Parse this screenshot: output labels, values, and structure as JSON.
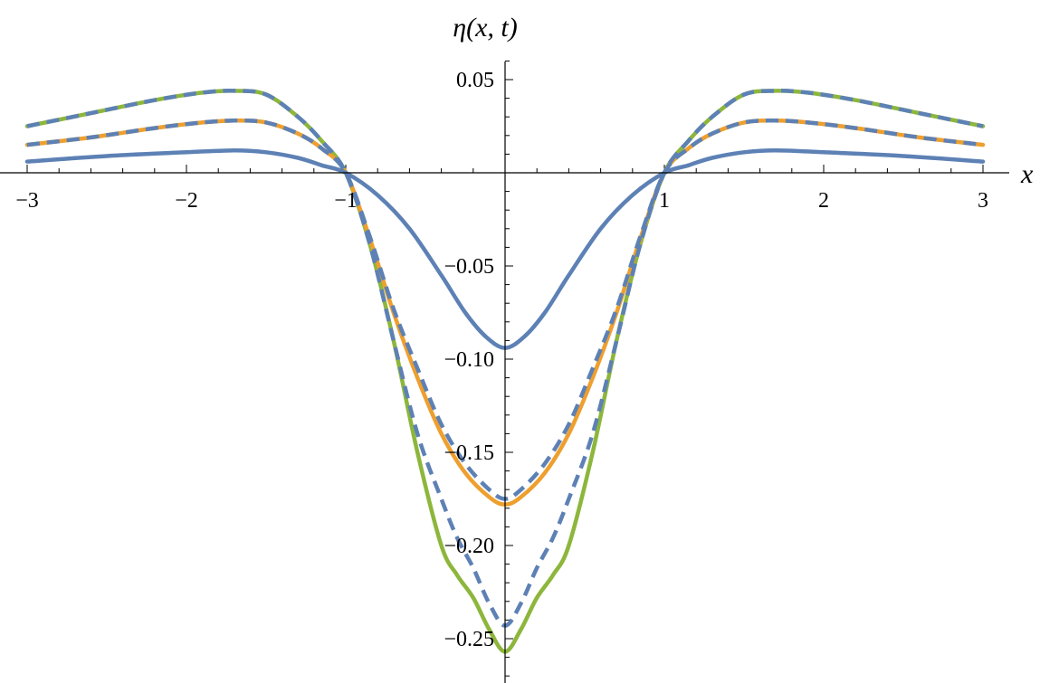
{
  "chart_data": {
    "type": "line",
    "title": "",
    "xlabel": "x",
    "ylabel": "η(x, t)",
    "xlim": [
      -3.05,
      3.05
    ],
    "ylim": [
      -0.272,
      0.06
    ],
    "x_ticks": [
      {
        "value": -3,
        "label": "−3"
      },
      {
        "value": -2,
        "label": "−2"
      },
      {
        "value": -1,
        "label": "−1"
      },
      {
        "value": 1,
        "label": "1"
      },
      {
        "value": 2,
        "label": "2"
      },
      {
        "value": 3,
        "label": "3"
      }
    ],
    "y_ticks": [
      {
        "value": 0.05,
        "label": "0.05"
      },
      {
        "value": -0.05,
        "label": "−0.05"
      },
      {
        "value": -0.1,
        "label": "−0.10"
      },
      {
        "value": -0.15,
        "label": "−0.15"
      },
      {
        "value": -0.2,
        "label": "−0.20"
      },
      {
        "value": -0.25,
        "label": "−0.25"
      }
    ],
    "x_minor_step": 0.2,
    "y_minor_step": 0.01,
    "grid": false,
    "series": [
      {
        "color": "#8DB63C",
        "dash": "solid",
        "points": [
          [
            -3,
            0.025
          ],
          [
            -2.6,
            0.032
          ],
          [
            -2.2,
            0.039
          ],
          [
            -1.9,
            0.043
          ],
          [
            -1.7,
            0.044
          ],
          [
            -1.5,
            0.042
          ],
          [
            -1.3,
            0.03
          ],
          [
            -1.15,
            0.017
          ],
          [
            -1.0,
            0.0
          ],
          [
            -0.85,
            -0.038
          ],
          [
            -0.7,
            -0.09
          ],
          [
            -0.55,
            -0.15
          ],
          [
            -0.4,
            -0.2
          ],
          [
            -0.3,
            -0.216
          ],
          [
            -0.2,
            -0.228
          ],
          [
            -0.1,
            -0.245
          ],
          [
            0,
            -0.257
          ],
          [
            0.1,
            -0.245
          ],
          [
            0.2,
            -0.228
          ],
          [
            0.3,
            -0.216
          ],
          [
            0.4,
            -0.2
          ],
          [
            0.55,
            -0.15
          ],
          [
            0.7,
            -0.09
          ],
          [
            0.85,
            -0.038
          ],
          [
            1.0,
            0.0
          ],
          [
            1.15,
            0.017
          ],
          [
            1.3,
            0.03
          ],
          [
            1.5,
            0.042
          ],
          [
            1.7,
            0.044
          ],
          [
            1.9,
            0.043
          ],
          [
            2.2,
            0.039
          ],
          [
            2.6,
            0.032
          ],
          [
            3,
            0.025
          ]
        ]
      },
      {
        "color": "#EE9F2E",
        "dash": "solid",
        "points": [
          [
            -3,
            0.015
          ],
          [
            -2.6,
            0.019
          ],
          [
            -2.2,
            0.024
          ],
          [
            -1.9,
            0.027
          ],
          [
            -1.7,
            0.028
          ],
          [
            -1.5,
            0.027
          ],
          [
            -1.3,
            0.021
          ],
          [
            -1.15,
            0.013
          ],
          [
            -1.0,
            0.0
          ],
          [
            -0.85,
            -0.035
          ],
          [
            -0.7,
            -0.075
          ],
          [
            -0.55,
            -0.11
          ],
          [
            -0.4,
            -0.14
          ],
          [
            -0.25,
            -0.161
          ],
          [
            -0.1,
            -0.174
          ],
          [
            0,
            -0.178
          ],
          [
            0.1,
            -0.174
          ],
          [
            0.25,
            -0.161
          ],
          [
            0.4,
            -0.14
          ],
          [
            0.55,
            -0.11
          ],
          [
            0.7,
            -0.075
          ],
          [
            0.85,
            -0.035
          ],
          [
            1.0,
            0.0
          ],
          [
            1.15,
            0.013
          ],
          [
            1.3,
            0.021
          ],
          [
            1.5,
            0.027
          ],
          [
            1.7,
            0.028
          ],
          [
            1.9,
            0.027
          ],
          [
            2.2,
            0.024
          ],
          [
            2.6,
            0.019
          ],
          [
            3,
            0.015
          ]
        ]
      },
      {
        "color": "#5D81B5",
        "dash": "solid",
        "points": [
          [
            -3,
            0.006
          ],
          [
            -2.5,
            0.009
          ],
          [
            -2,
            0.011
          ],
          [
            -1.7,
            0.012
          ],
          [
            -1.5,
            0.011
          ],
          [
            -1.3,
            0.008
          ],
          [
            -1.15,
            0.004
          ],
          [
            -1.0,
            0.0
          ],
          [
            -0.8,
            -0.012
          ],
          [
            -0.6,
            -0.03
          ],
          [
            -0.4,
            -0.055
          ],
          [
            -0.25,
            -0.075
          ],
          [
            -0.12,
            -0.088
          ],
          [
            0,
            -0.094
          ],
          [
            0.12,
            -0.088
          ],
          [
            0.25,
            -0.075
          ],
          [
            0.4,
            -0.055
          ],
          [
            0.6,
            -0.03
          ],
          [
            0.8,
            -0.012
          ],
          [
            1.0,
            0.0
          ],
          [
            1.15,
            0.004
          ],
          [
            1.3,
            0.008
          ],
          [
            1.5,
            0.011
          ],
          [
            1.7,
            0.012
          ],
          [
            2,
            0.011
          ],
          [
            2.5,
            0.009
          ],
          [
            3,
            0.006
          ]
        ]
      },
      {
        "color": "#5D81B5",
        "dash": "dashed",
        "points": [
          [
            -3,
            0.025
          ],
          [
            -2.6,
            0.032
          ],
          [
            -2.2,
            0.039
          ],
          [
            -1.9,
            0.043
          ],
          [
            -1.7,
            0.044
          ],
          [
            -1.5,
            0.042
          ],
          [
            -1.3,
            0.03
          ],
          [
            -1.15,
            0.017
          ],
          [
            -1.0,
            0.0
          ],
          [
            -0.85,
            -0.038
          ],
          [
            -0.7,
            -0.09
          ],
          [
            -0.55,
            -0.14
          ],
          [
            -0.4,
            -0.175
          ],
          [
            -0.3,
            -0.196
          ],
          [
            -0.2,
            -0.212
          ],
          [
            -0.1,
            -0.231
          ],
          [
            0,
            -0.243
          ],
          [
            0.1,
            -0.231
          ],
          [
            0.2,
            -0.212
          ],
          [
            0.3,
            -0.196
          ],
          [
            0.4,
            -0.175
          ],
          [
            0.55,
            -0.14
          ],
          [
            0.7,
            -0.09
          ],
          [
            0.85,
            -0.038
          ],
          [
            1.0,
            0.0
          ],
          [
            1.15,
            0.017
          ],
          [
            1.3,
            0.03
          ],
          [
            1.5,
            0.042
          ],
          [
            1.7,
            0.044
          ],
          [
            1.9,
            0.043
          ],
          [
            2.2,
            0.039
          ],
          [
            2.6,
            0.032
          ],
          [
            3,
            0.025
          ]
        ]
      },
      {
        "color": "#5D81B5",
        "dash": "dashed",
        "points": [
          [
            -3,
            0.015
          ],
          [
            -2.6,
            0.019
          ],
          [
            -2.2,
            0.024
          ],
          [
            -1.9,
            0.027
          ],
          [
            -1.7,
            0.028
          ],
          [
            -1.5,
            0.027
          ],
          [
            -1.3,
            0.021
          ],
          [
            -1.15,
            0.013
          ],
          [
            -1.0,
            0.0
          ],
          [
            -0.85,
            -0.034
          ],
          [
            -0.7,
            -0.073
          ],
          [
            -0.55,
            -0.105
          ],
          [
            -0.4,
            -0.135
          ],
          [
            -0.25,
            -0.156
          ],
          [
            -0.1,
            -0.17
          ],
          [
            0,
            -0.175
          ],
          [
            0.1,
            -0.17
          ],
          [
            0.25,
            -0.156
          ],
          [
            0.4,
            -0.135
          ],
          [
            0.55,
            -0.105
          ],
          [
            0.7,
            -0.073
          ],
          [
            0.85,
            -0.034
          ],
          [
            1.0,
            0.0
          ],
          [
            1.15,
            0.013
          ],
          [
            1.3,
            0.021
          ],
          [
            1.5,
            0.027
          ],
          [
            1.7,
            0.028
          ],
          [
            1.9,
            0.027
          ],
          [
            2.2,
            0.024
          ],
          [
            2.6,
            0.019
          ],
          [
            3,
            0.015
          ]
        ]
      }
    ]
  }
}
